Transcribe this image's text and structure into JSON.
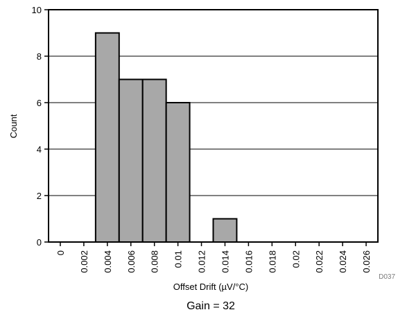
{
  "chart_data": {
    "type": "bar",
    "xlabel": "Offset Drift (µV/°C)",
    "ylabel": "Count",
    "caption": "Gain = 32",
    "figure_id": "D037",
    "ylim": [
      0,
      10
    ],
    "y_ticks": [
      0,
      2,
      4,
      6,
      8,
      10
    ],
    "y_tick_labels": [
      "0",
      "2",
      "4",
      "6",
      "8",
      "10"
    ],
    "x_tick_labels": [
      "0",
      "0.002",
      "0.004",
      "0.006",
      "0.008",
      "0.01",
      "0.012",
      "0.014",
      "0.016",
      "0.018",
      "0.02",
      "0.022",
      "0.024",
      "0.026"
    ],
    "grid": true,
    "bin_edges": [
      0.003,
      0.005,
      0.007,
      0.009,
      0.011,
      0.013,
      0.015
    ],
    "bins": [
      {
        "start": 0.003,
        "end": 0.005,
        "count": 9
      },
      {
        "start": 0.005,
        "end": 0.007,
        "count": 7
      },
      {
        "start": 0.007,
        "end": 0.009,
        "count": 7
      },
      {
        "start": 0.009,
        "end": 0.011,
        "count": 6
      },
      {
        "start": 0.011,
        "end": 0.013,
        "count": 0
      },
      {
        "start": 0.013,
        "end": 0.015,
        "count": 1
      }
    ]
  },
  "colors": {
    "bar_fill": "#a8a8a8",
    "bar_stroke": "#000000",
    "grid": "#000000",
    "axis": "#000000"
  }
}
